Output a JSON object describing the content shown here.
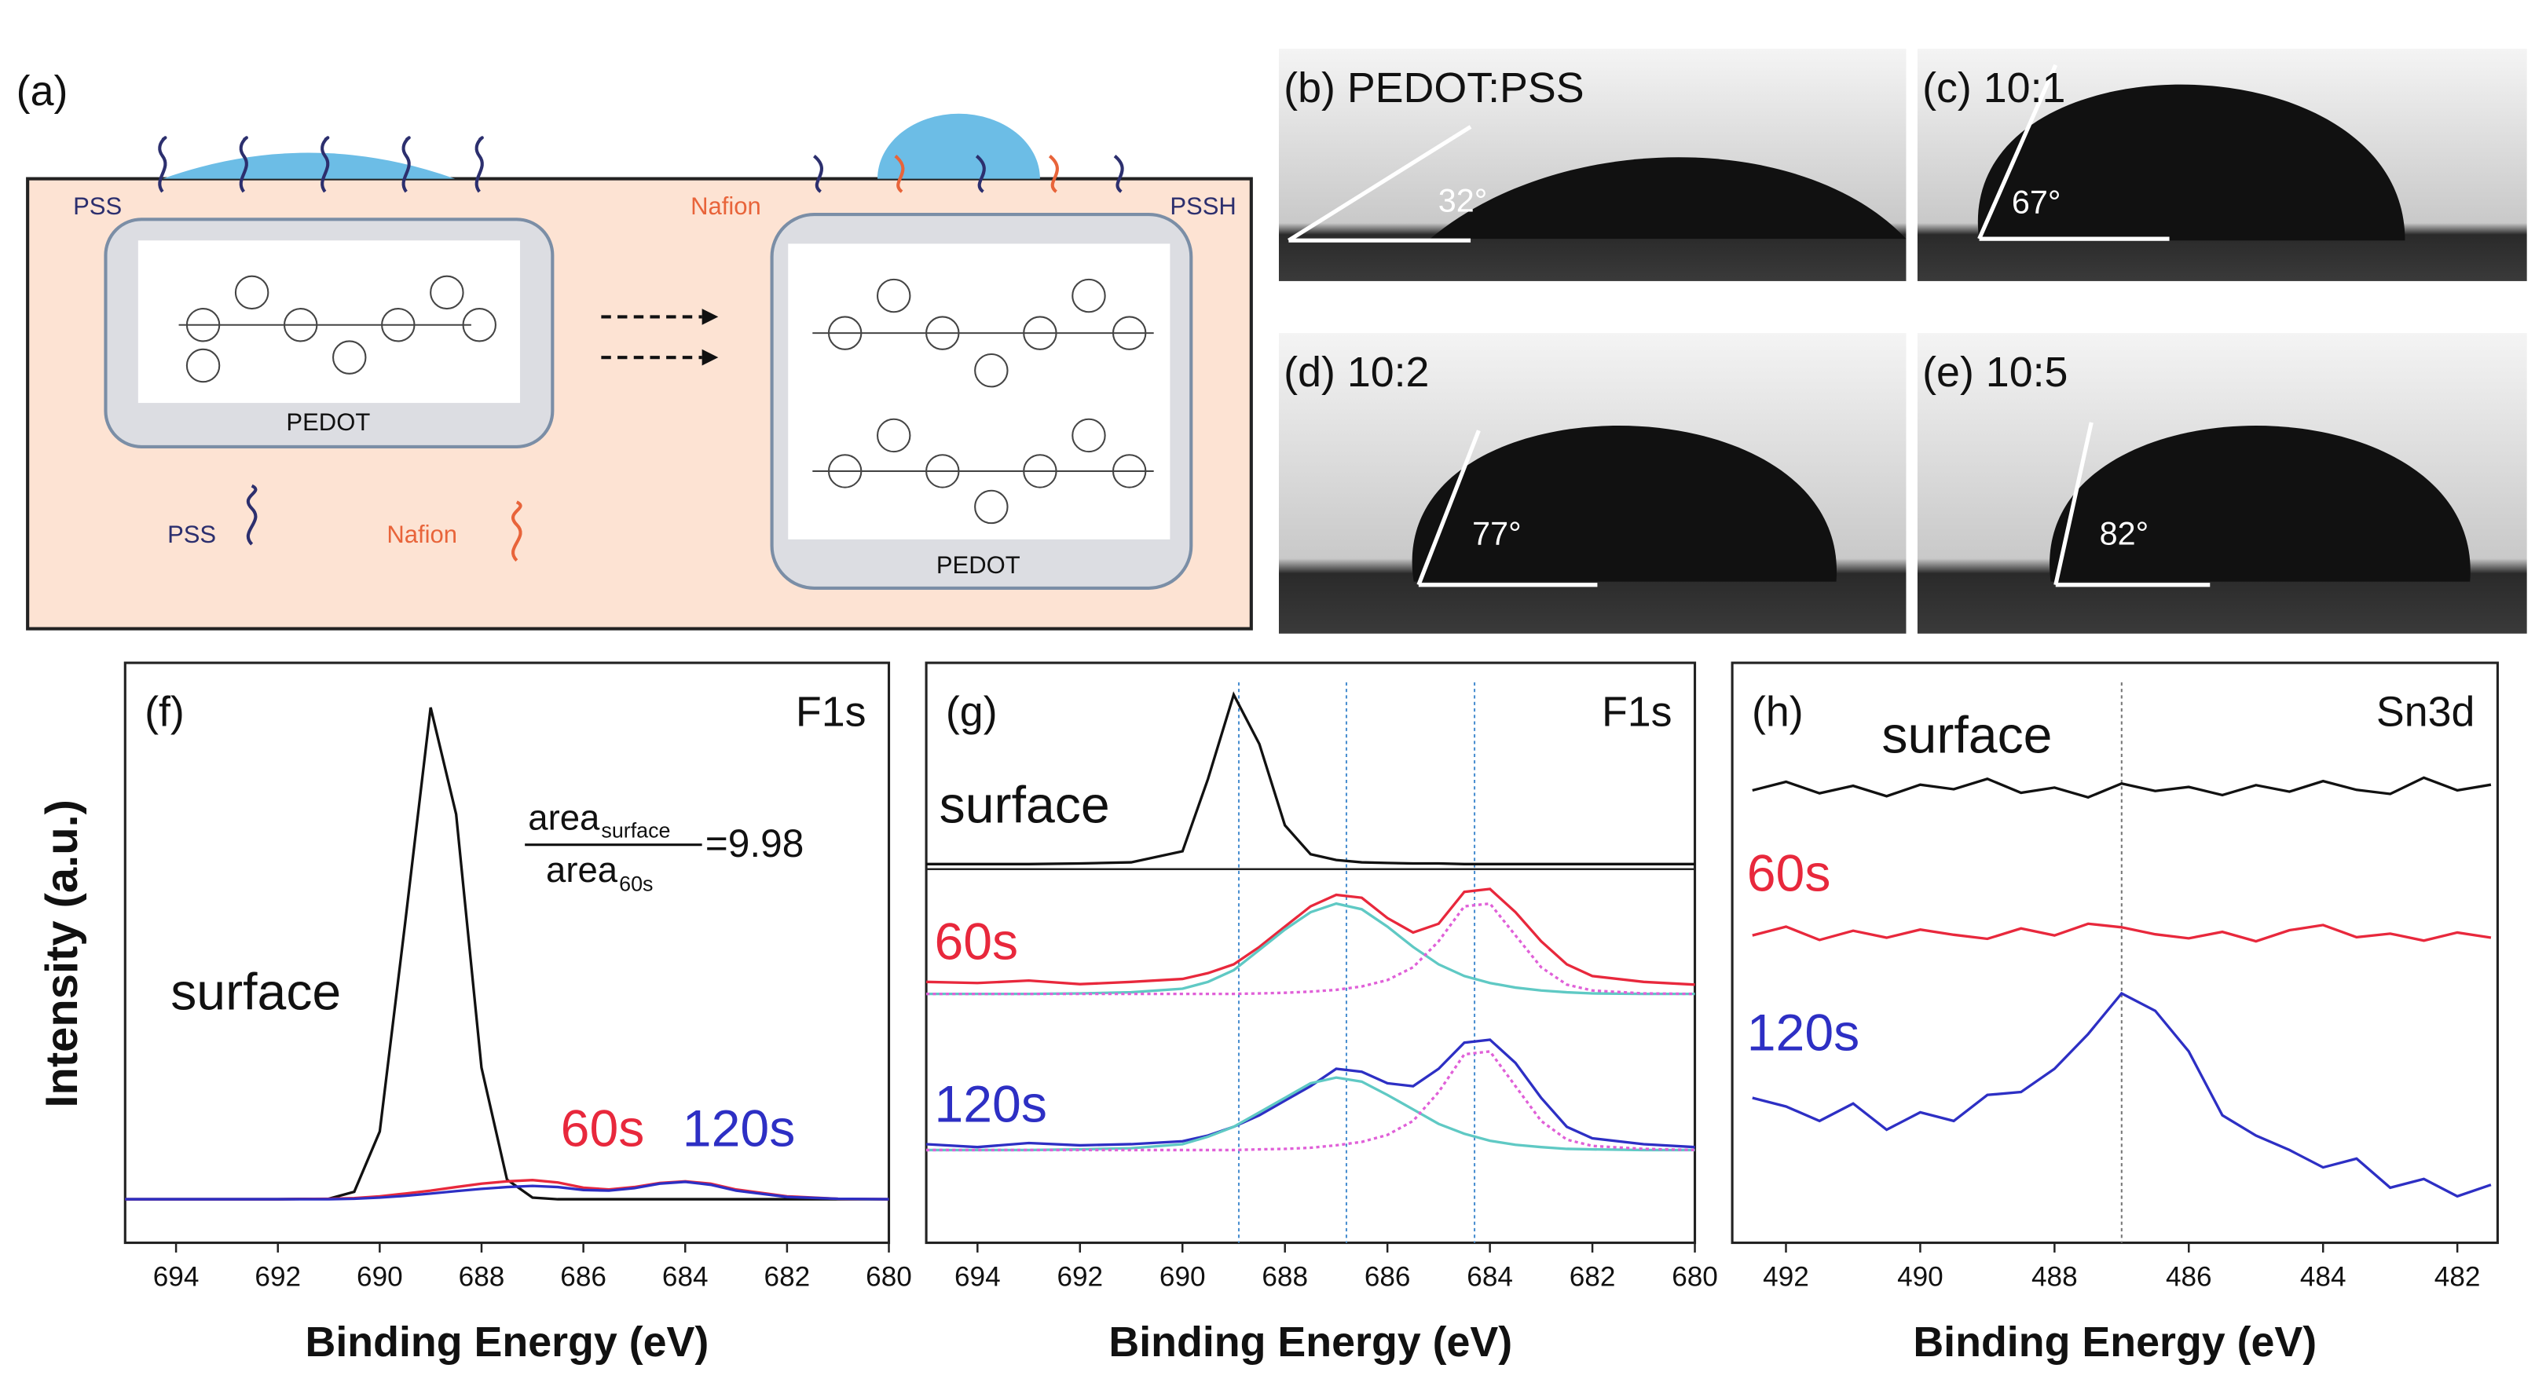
{
  "panel_a": {
    "label": "(a)",
    "texts": {
      "pss_top": "PSS",
      "nafion_top": "Nafion",
      "pssh_top": "PSSH",
      "pedot_left": "PEDOT",
      "pedot_right": "PEDOT",
      "legend_pss": "PSS",
      "legend_nafion": "Nafion"
    }
  },
  "photos": [
    {
      "label": "(b) PEDOT:PSS",
      "angle": "32°"
    },
    {
      "label": "(c) 10:1",
      "angle": "67°"
    },
    {
      "label": "(d) 10:2",
      "angle": "77°"
    },
    {
      "label": "(e) 10:5",
      "angle": "82°"
    }
  ],
  "y_axis_label": "Intensity (a.u.)",
  "chart_data": [
    {
      "type": "line",
      "label": "(f)",
      "title": "F1s",
      "xlabel": "Binding Energy (eV)",
      "x": [
        695,
        694,
        693,
        692,
        691,
        690.5,
        690,
        689.5,
        689,
        688.5,
        688,
        687.5,
        687,
        686.5,
        686,
        685.5,
        685,
        684.5,
        684,
        683.5,
        683,
        682,
        681,
        680
      ],
      "xlim": [
        695,
        680
      ],
      "xticks": [
        694,
        692,
        690,
        688,
        686,
        684,
        682,
        680
      ],
      "ylim": [
        0,
        100
      ],
      "series": [
        {
          "name": "surface",
          "color": "#111111",
          "values": [
            7.5,
            7.5,
            7.5,
            7.5,
            7.6,
            8.8,
            19.2,
            55.1,
            92.3,
            73.9,
            30.2,
            10.9,
            7.8,
            7.5,
            7.5,
            7.5,
            7.5,
            7.5,
            7.5,
            7.5,
            7.5,
            7.5,
            7.5,
            7.5
          ]
        },
        {
          "name": "60s",
          "color": "#e8283c",
          "values": [
            7.5,
            7.5,
            7.5,
            7.5,
            7.6,
            7.7,
            8,
            8.5,
            9,
            9.6,
            10.2,
            10.6,
            10.8,
            10.4,
            9.5,
            9.2,
            9.6,
            10.3,
            10.6,
            10.2,
            9.2,
            8,
            7.6,
            7.5
          ]
        },
        {
          "name": "120s",
          "color": "#2d2fc4",
          "values": [
            7.5,
            7.5,
            7.5,
            7.5,
            7.5,
            7.6,
            7.8,
            8.1,
            8.5,
            8.9,
            9.3,
            9.6,
            9.8,
            9.6,
            9.1,
            9,
            9.4,
            10.2,
            10.5,
            10,
            9,
            7.9,
            7.6,
            7.5
          ]
        }
      ],
      "annotation": {
        "numerator": "area",
        "numerator_sub": "surface",
        "denominator": "area",
        "denominator_sub": "60s",
        "equals": "=9.98"
      }
    },
    {
      "type": "line",
      "label": "(g)",
      "title": "F1s",
      "xlabel": "Binding Energy (eV)",
      "x": [
        695,
        694,
        693,
        692,
        691,
        690,
        689.5,
        689,
        688.5,
        688,
        687.5,
        687,
        686.5,
        686,
        685.5,
        685,
        684.5,
        684,
        683.5,
        683,
        682.5,
        682,
        681,
        680
      ],
      "xlim": [
        695,
        680
      ],
      "xticks": [
        694,
        692,
        690,
        688,
        686,
        684,
        682,
        680
      ],
      "ylim": [
        0,
        100
      ],
      "vlines": [
        688.9,
        686.8,
        684.3
      ],
      "series": [
        {
          "name": "surface",
          "color": "#111111",
          "values": [
            65.3,
            65.3,
            65.3,
            65.4,
            65.6,
            67.5,
            80,
            94.5,
            86,
            72,
            67,
            66,
            65.6,
            65.5,
            65.4,
            65.4,
            65.3,
            65.3,
            65.3,
            65.3,
            65.3,
            65.3,
            65.3,
            65.3
          ]
        },
        {
          "name": "60s",
          "color": "#e8283c",
          "values": [
            45,
            44.8,
            45.2,
            44.6,
            45,
            45.5,
            46.5,
            48,
            51,
            54.5,
            58,
            60,
            59.5,
            56,
            53.5,
            55,
            60.5,
            61,
            57,
            52,
            48,
            46,
            45,
            44.5
          ]
        },
        {
          "color": "#5fc9c4",
          "values": [
            42.9,
            42.9,
            42.9,
            43,
            43.2,
            43.8,
            45,
            47,
            50.5,
            54,
            57,
            58.5,
            57.5,
            54.5,
            51,
            48,
            46,
            44.8,
            44,
            43.5,
            43.2,
            43,
            42.9,
            42.9
          ]
        },
        {
          "color": "#e060d8",
          "style": "dotted",
          "values": [
            42.9,
            42.9,
            42.9,
            42.9,
            42.9,
            42.9,
            42.9,
            42.9,
            43,
            43.1,
            43.3,
            43.6,
            44.2,
            45.3,
            47.5,
            52,
            58,
            58.5,
            53,
            47.5,
            44.5,
            43.5,
            43,
            42.9
          ]
        },
        {
          "name": "120s",
          "color": "#2d2fc4",
          "values": [
            17,
            16.5,
            17.2,
            16.8,
            17,
            17.5,
            18.5,
            20,
            22,
            24.5,
            27,
            30,
            29.5,
            27.5,
            27,
            30,
            34.5,
            35,
            31,
            25,
            20,
            18,
            17,
            16.5
          ]
        },
        {
          "color": "#5fc9c4",
          "values": [
            16,
            16,
            16,
            16.1,
            16.3,
            17,
            18.3,
            20,
            22.5,
            25,
            27.5,
            28.5,
            27.8,
            25.5,
            23,
            20.5,
            18.8,
            17.6,
            16.9,
            16.5,
            16.2,
            16.1,
            16,
            16
          ]
        },
        {
          "color": "#e060d8",
          "style": "dotted",
          "values": [
            16,
            16,
            16,
            16,
            16,
            16,
            16,
            16,
            16.1,
            16.2,
            16.4,
            16.8,
            17.4,
            18.6,
            21,
            26,
            32.5,
            33,
            27,
            21,
            17.8,
            16.7,
            16.2,
            16
          ]
        }
      ]
    },
    {
      "type": "line",
      "label": "(h)",
      "title": "Sn3d",
      "xlabel": "Binding Energy (eV)",
      "x": [
        492.5,
        492,
        491.5,
        491,
        490.5,
        490,
        489.5,
        489,
        488.5,
        488,
        487.5,
        487,
        486.5,
        486,
        485.5,
        485,
        484.5,
        484,
        483.5,
        483,
        482.5,
        482,
        481.5
      ],
      "xlim": [
        492.8,
        481.4
      ],
      "xticks": [
        492,
        490,
        488,
        486,
        484,
        482
      ],
      "ylim": [
        0,
        100
      ],
      "vlines": [
        487
      ],
      "series": [
        {
          "name": "surface",
          "color": "#111111",
          "values": [
            78,
            79.5,
            77.5,
            78.8,
            77,
            79,
            78.2,
            80,
            77.6,
            78.5,
            76.8,
            79.2,
            77.9,
            78.6,
            77.2,
            78.9,
            77.8,
            79.6,
            78.1,
            77.4,
            80.2,
            78,
            79
          ]
        },
        {
          "name": "60s",
          "color": "#e8283c",
          "values": [
            53,
            54.5,
            52.2,
            53.8,
            52.6,
            54,
            53.1,
            52.4,
            54.2,
            53,
            55,
            54.4,
            53.2,
            52.5,
            53.6,
            52,
            53.9,
            54.8,
            52.7,
            53.3,
            52.1,
            53.5,
            52.6
          ]
        },
        {
          "name": "120s",
          "color": "#2d2fc4",
          "values": [
            25,
            23.5,
            21,
            24,
            19.5,
            22.5,
            21,
            25.5,
            26,
            30,
            36,
            43,
            40,
            33,
            22,
            18.5,
            16,
            13,
            14.5,
            9.5,
            11,
            8,
            10
          ]
        }
      ]
    }
  ]
}
